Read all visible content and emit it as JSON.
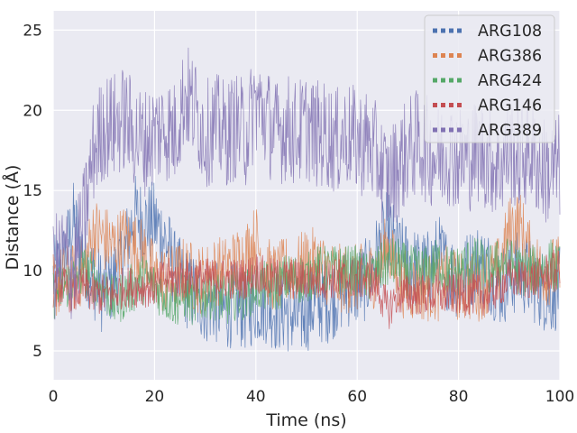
{
  "chart_data": {
    "type": "line",
    "xlabel": "Time (ns)",
    "ylabel": "Distance (Å)",
    "xlim": [
      0,
      100
    ],
    "ylim": [
      3.2,
      26.2
    ],
    "xticks": [
      0,
      20,
      40,
      60,
      80,
      100
    ],
    "yticks": [
      5,
      10,
      15,
      20,
      25
    ],
    "grid": true,
    "legend_position": "top-right",
    "series": [
      {
        "name": "ARG108",
        "color": "#4c72b0",
        "x": [
          0,
          2,
          4,
          6,
          8,
          10,
          12,
          14,
          16,
          18,
          20,
          22,
          24,
          26,
          28,
          30,
          32,
          34,
          36,
          38,
          40,
          42,
          44,
          46,
          48,
          50,
          52,
          54,
          56,
          58,
          60,
          62,
          64,
          66,
          68,
          70,
          72,
          74,
          76,
          78,
          80,
          82,
          84,
          86,
          88,
          90,
          92,
          94,
          96,
          98,
          100
        ],
        "y": [
          9.5,
          10.5,
          13,
          11,
          9.5,
          8.5,
          9.5,
          11,
          13.5,
          13,
          13,
          12,
          10,
          9,
          8.5,
          8,
          8,
          7.5,
          8,
          7.5,
          8,
          8,
          7.5,
          7.5,
          7,
          7.5,
          8,
          8,
          8.5,
          9,
          9,
          9.5,
          11,
          12.5,
          11,
          10.5,
          10,
          10,
          11,
          10,
          9.5,
          10,
          10.5,
          10,
          9,
          9.5,
          10,
          9.5,
          9,
          8.5,
          9
        ]
      },
      {
        "name": "ARG386",
        "color": "#dd8452",
        "x": [
          0,
          2,
          4,
          6,
          8,
          10,
          12,
          14,
          16,
          18,
          20,
          22,
          24,
          26,
          28,
          30,
          32,
          34,
          36,
          38,
          40,
          42,
          44,
          46,
          48,
          50,
          52,
          54,
          56,
          58,
          60,
          62,
          64,
          66,
          68,
          70,
          72,
          74,
          76,
          78,
          80,
          82,
          84,
          86,
          88,
          90,
          92,
          94,
          96,
          98,
          100
        ],
        "y": [
          9,
          9.5,
          9.5,
          10,
          12.5,
          12,
          11.5,
          12,
          11.5,
          11,
          9.5,
          9.5,
          9.5,
          10,
          9.5,
          9.5,
          10,
          10,
          10.5,
          11,
          12,
          10,
          9.5,
          10,
          10,
          10.5,
          10.5,
          10,
          9.5,
          9.5,
          9.5,
          9.5,
          10,
          11.5,
          9.5,
          9,
          9,
          9,
          9,
          9.5,
          9,
          9,
          9,
          9.5,
          10,
          12.5,
          13,
          11,
          10,
          10,
          10
        ]
      },
      {
        "name": "ARG424",
        "color": "#55a868",
        "x": [
          0,
          2,
          4,
          6,
          8,
          10,
          12,
          14,
          16,
          18,
          20,
          22,
          24,
          26,
          28,
          30,
          32,
          34,
          36,
          38,
          40,
          42,
          44,
          46,
          48,
          50,
          52,
          54,
          56,
          58,
          60,
          62,
          64,
          66,
          68,
          70,
          72,
          74,
          76,
          78,
          80,
          82,
          84,
          86,
          88,
          90,
          92,
          94,
          96,
          98,
          100
        ],
        "y": [
          8.5,
          9,
          9.5,
          10,
          9.5,
          9,
          8,
          8.5,
          9,
          9.5,
          9,
          8.5,
          8,
          8.5,
          8,
          8.5,
          8.5,
          8,
          8.5,
          8.5,
          9,
          9,
          9,
          9.5,
          9.5,
          9.5,
          10,
          10,
          10,
          10,
          10,
          9.5,
          10,
          10.5,
          10.5,
          10,
          10,
          10,
          10.5,
          10,
          10,
          10.5,
          10.5,
          10,
          10.5,
          10.5,
          10,
          10,
          10,
          10.5,
          10
        ]
      },
      {
        "name": "ARG146",
        "color": "#c44e52",
        "x": [
          0,
          2,
          4,
          6,
          8,
          10,
          12,
          14,
          16,
          18,
          20,
          22,
          24,
          26,
          28,
          30,
          32,
          34,
          36,
          38,
          40,
          42,
          44,
          46,
          48,
          50,
          52,
          54,
          56,
          58,
          60,
          62,
          64,
          66,
          68,
          70,
          72,
          74,
          76,
          78,
          80,
          82,
          84,
          86,
          88,
          90,
          92,
          94,
          96,
          98,
          100
        ],
        "y": [
          9,
          9,
          8.5,
          9,
          8.5,
          8.5,
          8.5,
          9,
          9,
          9,
          9,
          9.5,
          9.5,
          9.5,
          9.5,
          9.5,
          9.5,
          9.5,
          9.5,
          9.5,
          10,
          9.5,
          9.5,
          9.5,
          9.5,
          9.5,
          9.5,
          9.5,
          9.5,
          9.5,
          9.5,
          9.5,
          9,
          7.5,
          8.5,
          8.5,
          8.5,
          8.5,
          8.5,
          8.5,
          8.5,
          8.5,
          8.5,
          8.5,
          9,
          9.5,
          9.5,
          9.5,
          9.5,
          10,
          10
        ]
      },
      {
        "name": "ARG389",
        "color": "#8172b3",
        "x": [
          0,
          2,
          4,
          6,
          8,
          10,
          12,
          14,
          16,
          18,
          20,
          22,
          24,
          26,
          28,
          30,
          32,
          34,
          36,
          38,
          40,
          42,
          44,
          46,
          48,
          50,
          52,
          54,
          56,
          58,
          60,
          62,
          64,
          66,
          68,
          70,
          72,
          74,
          76,
          78,
          80,
          82,
          84,
          86,
          88,
          90,
          92,
          94,
          96,
          98,
          100
        ],
        "y": [
          10,
          11,
          10,
          13,
          17.5,
          19,
          19,
          19.5,
          18.5,
          18,
          18.5,
          19,
          18.5,
          21,
          20,
          18.5,
          19,
          18.5,
          19,
          18.5,
          20.5,
          19.5,
          18.5,
          19,
          18.5,
          19,
          18.5,
          18.5,
          18,
          18.5,
          18,
          18,
          17,
          15.5,
          16.5,
          17.5,
          18,
          17.5,
          17,
          17.5,
          17,
          17,
          17.5,
          17,
          16.5,
          17.5,
          17,
          17.5,
          16.5,
          16,
          16.5
        ]
      }
    ]
  }
}
